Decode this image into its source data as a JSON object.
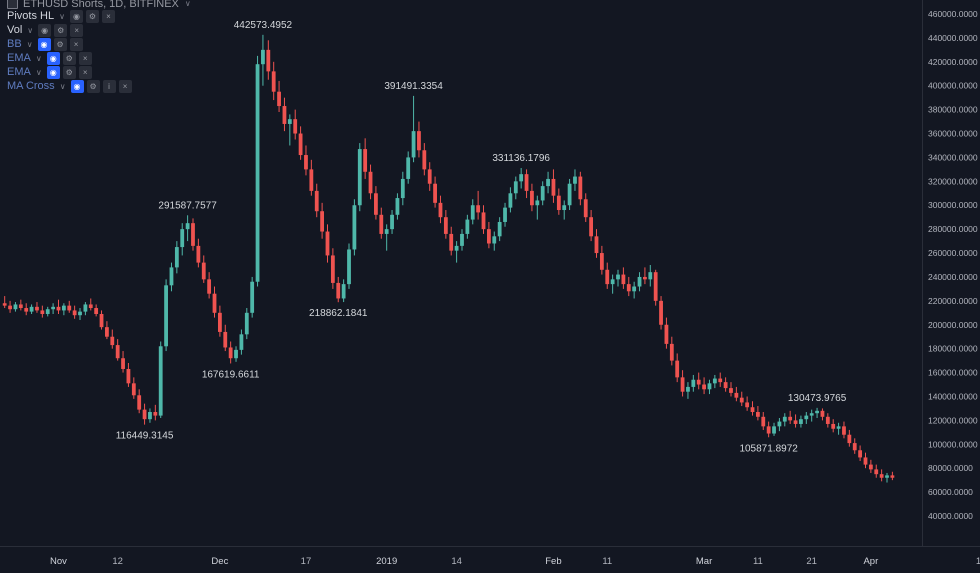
{
  "header": {
    "title": "ETHUSD Shorts, 1D, BITFINEX"
  },
  "icons": {
    "chevron": "∨",
    "eye": "◉",
    "settings": "⚙",
    "close": "×",
    "info": "i"
  },
  "legend": {
    "items": [
      {
        "label": "Pivots HL",
        "icons": [
          "eye",
          "settings",
          "close"
        ],
        "muted": false
      },
      {
        "label": "Vol",
        "icons": [
          "eye",
          "settings",
          "close"
        ],
        "muted": false
      },
      {
        "label": "BB",
        "icons": [
          "eye",
          "settings",
          "close"
        ],
        "muted": true
      },
      {
        "label": "EMA",
        "icons": [
          "eye",
          "settings",
          "close"
        ],
        "muted": true
      },
      {
        "label": "EMA",
        "icons": [
          "eye",
          "settings",
          "close"
        ],
        "muted": true
      },
      {
        "label": "MA Cross",
        "icons": [
          "eye",
          "settings",
          "info",
          "close"
        ],
        "muted": true
      }
    ]
  },
  "colors": {
    "bg": "#131722",
    "up": "#4fb8aa",
    "down": "#ef5350",
    "axis_text": "#b2b5be",
    "major_axis_text": "#d1d4dc",
    "panel_border": "#2a2e39",
    "pivot_text": "#d5d8dc"
  },
  "chart_data": {
    "type": "candlestick",
    "symbol": "ETHUSD Shorts",
    "interval": "1D",
    "exchange": "BITFINEX",
    "y_axis": {
      "min": 40000,
      "max": 460000,
      "step": 20000,
      "labels": [
        "460000.0000",
        "440000.0000",
        "420000.0000",
        "400000.0000",
        "380000.0000",
        "360000.0000",
        "340000.0000",
        "320000.0000",
        "300000.0000",
        "280000.0000",
        "260000.0000",
        "240000.0000",
        "220000.0000",
        "200000.0000",
        "180000.0000",
        "160000.0000",
        "140000.0000",
        "120000.0000",
        "100000.0000",
        "80000.0000",
        "60000.0000",
        "40000.0000"
      ]
    },
    "x_axis": {
      "labels": [
        {
          "text": "Nov",
          "i": 10,
          "major": true
        },
        {
          "text": "12",
          "i": 21,
          "major": false
        },
        {
          "text": "Dec",
          "i": 40,
          "major": true
        },
        {
          "text": "17",
          "i": 56,
          "major": false
        },
        {
          "text": "2019",
          "i": 71,
          "major": true
        },
        {
          "text": "14",
          "i": 84,
          "major": false
        },
        {
          "text": "Feb",
          "i": 102,
          "major": true
        },
        {
          "text": "11",
          "i": 112,
          "major": false
        },
        {
          "text": "Mar",
          "i": 130,
          "major": true
        },
        {
          "text": "11",
          "i": 140,
          "major": false
        },
        {
          "text": "21",
          "i": 150,
          "major": false
        },
        {
          "text": "Apr",
          "i": 161,
          "major": true
        },
        {
          "text": "1",
          "i": 181,
          "major": false
        }
      ]
    },
    "pivot_labels": [
      {
        "text": "442573.4952",
        "price": 442573.4952,
        "i": 48,
        "side": "above"
      },
      {
        "text": "391491.3354",
        "price": 391491.3354,
        "i": 76,
        "side": "above"
      },
      {
        "text": "331136.1796",
        "price": 331136.1796,
        "i": 96,
        "side": "above"
      },
      {
        "text": "291587.7577",
        "price": 291587.7577,
        "i": 34,
        "side": "above"
      },
      {
        "text": "218862.1841",
        "price": 218862.1841,
        "i": 62,
        "side": "below"
      },
      {
        "text": "167619.6611",
        "price": 167619.6611,
        "i": 42,
        "side": "below"
      },
      {
        "text": "116449.3145",
        "price": 116449.3145,
        "i": 26,
        "side": "below"
      },
      {
        "text": "130473.9765",
        "price": 130473.9765,
        "i": 151,
        "side": "above"
      },
      {
        "text": "105871.8972",
        "price": 105871.8972,
        "i": 142,
        "side": "below"
      }
    ],
    "candles": [
      [
        218000,
        224000,
        214000,
        216000
      ],
      [
        216000,
        220000,
        210000,
        213000
      ],
      [
        213000,
        219000,
        211000,
        217000
      ],
      [
        217000,
        221000,
        212000,
        214000
      ],
      [
        214000,
        218000,
        208000,
        211000
      ],
      [
        211000,
        217000,
        209000,
        215000
      ],
      [
        215000,
        219000,
        210000,
        212000
      ],
      [
        212000,
        216000,
        206000,
        209000
      ],
      [
        209000,
        215000,
        207000,
        213000
      ],
      [
        213000,
        218000,
        209000,
        215000
      ],
      [
        215000,
        221000,
        209000,
        212000
      ],
      [
        212000,
        218000,
        208000,
        216000
      ],
      [
        216000,
        220000,
        210000,
        212000
      ],
      [
        212000,
        216000,
        205000,
        208000
      ],
      [
        208000,
        214000,
        204000,
        211000
      ],
      [
        211000,
        219000,
        208000,
        217000
      ],
      [
        217000,
        222000,
        212000,
        214000
      ],
      [
        214000,
        217000,
        207000,
        209000
      ],
      [
        209000,
        212000,
        196000,
        198000
      ],
      [
        198000,
        203000,
        188000,
        190000
      ],
      [
        190000,
        196000,
        180000,
        183000
      ],
      [
        183000,
        188000,
        170000,
        172000
      ],
      [
        172000,
        178000,
        160000,
        163000
      ],
      [
        163000,
        168000,
        148000,
        151000
      ],
      [
        151000,
        156000,
        138000,
        141000
      ],
      [
        141000,
        146000,
        126000,
        129000
      ],
      [
        129000,
        134000,
        116449.3145,
        121000
      ],
      [
        121000,
        130000,
        118000,
        127000
      ],
      [
        127000,
        133000,
        120000,
        124000
      ],
      [
        124000,
        186000,
        122000,
        182000
      ],
      [
        182000,
        238000,
        178000,
        233000
      ],
      [
        233000,
        252000,
        228000,
        248000
      ],
      [
        248000,
        270000,
        243000,
        265000
      ],
      [
        265000,
        285000,
        258000,
        280000
      ],
      [
        280000,
        291587.7577,
        270000,
        285000
      ],
      [
        285000,
        289000,
        262000,
        266000
      ],
      [
        266000,
        272000,
        248000,
        252000
      ],
      [
        252000,
        258000,
        235000,
        238000
      ],
      [
        238000,
        244000,
        222000,
        226000
      ],
      [
        226000,
        232000,
        206000,
        210000
      ],
      [
        210000,
        216000,
        190000,
        194000
      ],
      [
        194000,
        200000,
        178000,
        181000
      ],
      [
        181000,
        186000,
        167619.6611,
        172000
      ],
      [
        172000,
        182000,
        169000,
        179000
      ],
      [
        179000,
        196000,
        175000,
        192000
      ],
      [
        192000,
        214000,
        188000,
        210000
      ],
      [
        210000,
        240000,
        206000,
        236000
      ],
      [
        236000,
        425000,
        232000,
        418000
      ],
      [
        418000,
        442573.4952,
        400000,
        430000
      ],
      [
        430000,
        438000,
        405000,
        412000
      ],
      [
        412000,
        420000,
        388000,
        395000
      ],
      [
        395000,
        404000,
        378000,
        383000
      ],
      [
        383000,
        390000,
        362000,
        368000
      ],
      [
        368000,
        376000,
        350000,
        372000
      ],
      [
        372000,
        380000,
        355000,
        360000
      ],
      [
        360000,
        366000,
        338000,
        342000
      ],
      [
        342000,
        350000,
        325000,
        330000
      ],
      [
        330000,
        338000,
        308000,
        312000
      ],
      [
        312000,
        318000,
        290000,
        295000
      ],
      [
        295000,
        302000,
        272000,
        278000
      ],
      [
        278000,
        284000,
        252000,
        258000
      ],
      [
        258000,
        264000,
        230000,
        235000
      ],
      [
        235000,
        240000,
        218862.1841,
        222000
      ],
      [
        222000,
        238000,
        219000,
        234000
      ],
      [
        234000,
        268000,
        230000,
        263000
      ],
      [
        263000,
        305000,
        258000,
        300000
      ],
      [
        300000,
        352000,
        295000,
        347000
      ],
      [
        347000,
        356000,
        322000,
        328000
      ],
      [
        328000,
        334000,
        305000,
        310000
      ],
      [
        310000,
        316000,
        288000,
        292000
      ],
      [
        292000,
        298000,
        272000,
        276000
      ],
      [
        276000,
        284000,
        262000,
        280000
      ],
      [
        280000,
        296000,
        276000,
        292000
      ],
      [
        292000,
        310000,
        288000,
        306000
      ],
      [
        306000,
        328000,
        300000,
        322000
      ],
      [
        322000,
        345000,
        318000,
        340000
      ],
      [
        340000,
        391491.3354,
        336000,
        362000
      ],
      [
        362000,
        370000,
        340000,
        346000
      ],
      [
        346000,
        352000,
        325000,
        330000
      ],
      [
        330000,
        336000,
        312000,
        318000
      ],
      [
        318000,
        324000,
        298000,
        302000
      ],
      [
        302000,
        308000,
        285000,
        290000
      ],
      [
        290000,
        296000,
        272000,
        276000
      ],
      [
        276000,
        282000,
        258000,
        262000
      ],
      [
        262000,
        270000,
        252000,
        266000
      ],
      [
        266000,
        280000,
        262000,
        276000
      ],
      [
        276000,
        292000,
        272000,
        288000
      ],
      [
        288000,
        305000,
        284000,
        300000
      ],
      [
        300000,
        312000,
        288000,
        294000
      ],
      [
        294000,
        300000,
        276000,
        280000
      ],
      [
        280000,
        286000,
        264000,
        268000
      ],
      [
        268000,
        278000,
        262000,
        274000
      ],
      [
        274000,
        290000,
        270000,
        286000
      ],
      [
        286000,
        302000,
        282000,
        298000
      ],
      [
        298000,
        315000,
        294000,
        310000
      ],
      [
        310000,
        324000,
        305000,
        320000
      ],
      [
        320000,
        331136.1796,
        314000,
        326000
      ],
      [
        326000,
        330000,
        306000,
        312000
      ],
      [
        312000,
        318000,
        295000,
        300000
      ],
      [
        300000,
        308000,
        288000,
        304000
      ],
      [
        304000,
        320000,
        300000,
        316000
      ],
      [
        316000,
        328000,
        310000,
        322000
      ],
      [
        322000,
        330000,
        302000,
        308000
      ],
      [
        308000,
        314000,
        292000,
        296000
      ],
      [
        296000,
        304000,
        288000,
        300000
      ],
      [
        300000,
        322000,
        296000,
        318000
      ],
      [
        318000,
        330000,
        312000,
        324000
      ],
      [
        324000,
        328000,
        300000,
        305000
      ],
      [
        305000,
        310000,
        286000,
        290000
      ],
      [
        290000,
        296000,
        270000,
        274000
      ],
      [
        274000,
        280000,
        256000,
        260000
      ],
      [
        260000,
        266000,
        242000,
        246000
      ],
      [
        246000,
        252000,
        230000,
        234000
      ],
      [
        234000,
        242000,
        226000,
        238000
      ],
      [
        238000,
        246000,
        232000,
        242000
      ],
      [
        242000,
        248000,
        230000,
        234000
      ],
      [
        234000,
        240000,
        224000,
        228000
      ],
      [
        228000,
        236000,
        222000,
        232000
      ],
      [
        232000,
        244000,
        228000,
        240000
      ],
      [
        240000,
        248000,
        234000,
        238000
      ],
      [
        238000,
        250000,
        232000,
        244000
      ],
      [
        244000,
        246000,
        216000,
        220000
      ],
      [
        220000,
        224000,
        196000,
        200000
      ],
      [
        200000,
        206000,
        180000,
        184000
      ],
      [
        184000,
        190000,
        166000,
        170000
      ],
      [
        170000,
        176000,
        152000,
        156000
      ],
      [
        156000,
        162000,
        140000,
        144000
      ],
      [
        144000,
        152000,
        138000,
        148000
      ],
      [
        148000,
        158000,
        144000,
        154000
      ],
      [
        154000,
        160000,
        146000,
        150000
      ],
      [
        150000,
        156000,
        142000,
        146000
      ],
      [
        146000,
        154000,
        142000,
        151000
      ],
      [
        151000,
        158000,
        147000,
        155000
      ],
      [
        155000,
        160000,
        148000,
        152000
      ],
      [
        152000,
        156000,
        144000,
        147000
      ],
      [
        147000,
        152000,
        140000,
        143000
      ],
      [
        143000,
        148000,
        136000,
        139000
      ],
      [
        139000,
        144000,
        132000,
        135000
      ],
      [
        135000,
        140000,
        128000,
        131000
      ],
      [
        131000,
        136000,
        124000,
        127000
      ],
      [
        127000,
        132000,
        120000,
        123000
      ],
      [
        123000,
        127000,
        112000,
        115000
      ],
      [
        115000,
        119000,
        105871.8972,
        109000
      ],
      [
        109000,
        118000,
        107000,
        115000
      ],
      [
        115000,
        122000,
        111000,
        119000
      ],
      [
        119000,
        126000,
        115000,
        123000
      ],
      [
        123000,
        128000,
        117000,
        120000
      ],
      [
        120000,
        125000,
        114000,
        117000
      ],
      [
        117000,
        124000,
        114000,
        121000
      ],
      [
        121000,
        127000,
        117000,
        124000
      ],
      [
        124000,
        129000,
        119000,
        126000
      ],
      [
        126000,
        130473.9765,
        122000,
        128000
      ],
      [
        128000,
        130000,
        120000,
        123000
      ],
      [
        123000,
        126000,
        114000,
        117000
      ],
      [
        117000,
        121000,
        110000,
        113000
      ],
      [
        113000,
        118000,
        108000,
        115000
      ],
      [
        115000,
        119000,
        105000,
        108000
      ],
      [
        108000,
        112000,
        98000,
        101000
      ],
      [
        101000,
        105000,
        92000,
        95000
      ],
      [
        95000,
        99000,
        86000,
        89000
      ],
      [
        89000,
        93000,
        80000,
        83000
      ],
      [
        83000,
        87000,
        76000,
        79000
      ],
      [
        79000,
        83000,
        72000,
        75000
      ],
      [
        75000,
        79000,
        69000,
        72000
      ],
      [
        72000,
        76000,
        68000,
        74000
      ],
      [
        74000,
        77000,
        70000,
        72000
      ]
    ]
  }
}
